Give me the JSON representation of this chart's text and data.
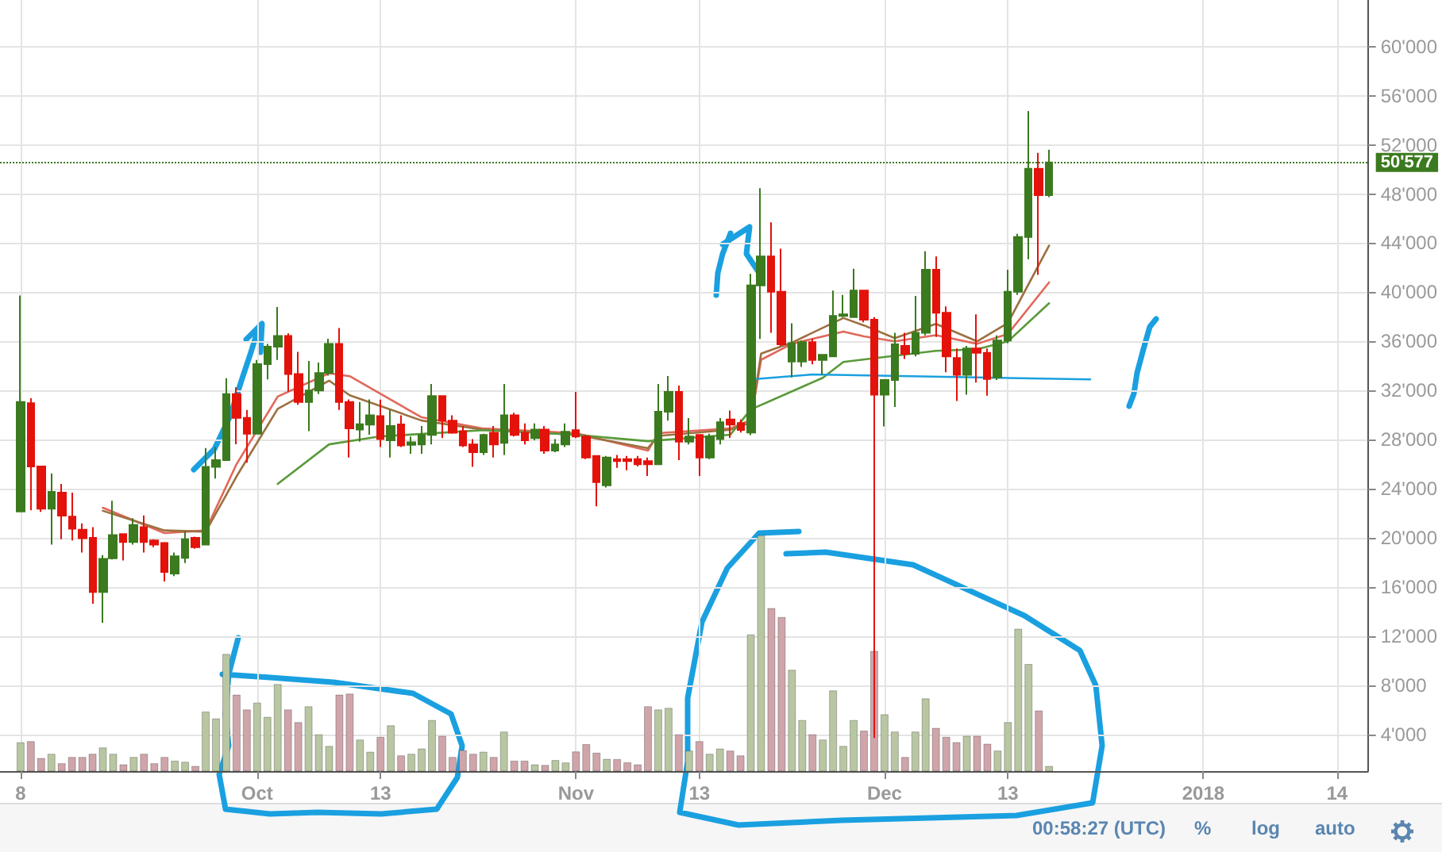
{
  "chart_data": {
    "type": "candlestick",
    "x": [
      "2017-09-08",
      "2017-09-09",
      "2017-09-10",
      "2017-09-11",
      "2017-09-12",
      "2017-09-13",
      "2017-09-14",
      "2017-09-15",
      "2017-09-16",
      "2017-09-17",
      "2017-09-18",
      "2017-09-19",
      "2017-09-20",
      "2017-09-21",
      "2017-09-22",
      "2017-09-23",
      "2017-09-24",
      "2017-09-25",
      "2017-09-26",
      "2017-09-27",
      "2017-09-28",
      "2017-09-29",
      "2017-09-30",
      "2017-10-01",
      "2017-10-02",
      "2017-10-03",
      "2017-10-04",
      "2017-10-05",
      "2017-10-06",
      "2017-10-07",
      "2017-10-08",
      "2017-10-09",
      "2017-10-10",
      "2017-10-11",
      "2017-10-12",
      "2017-10-13",
      "2017-10-14",
      "2017-10-15",
      "2017-10-16",
      "2017-10-17",
      "2017-10-18",
      "2017-10-19",
      "2017-10-20",
      "2017-10-21",
      "2017-10-22",
      "2017-10-23",
      "2017-10-24",
      "2017-10-25",
      "2017-10-26",
      "2017-10-27",
      "2017-10-28",
      "2017-10-29",
      "2017-10-30",
      "2017-10-31",
      "2017-11-01",
      "2017-11-02",
      "2017-11-03",
      "2017-11-04",
      "2017-11-05",
      "2017-11-06",
      "2017-11-07",
      "2017-11-08",
      "2017-11-09",
      "2017-11-10",
      "2017-11-11",
      "2017-11-12",
      "2017-11-13",
      "2017-11-14",
      "2017-11-15",
      "2017-11-16",
      "2017-11-17",
      "2017-11-18",
      "2017-11-19",
      "2017-11-20",
      "2017-11-21",
      "2017-11-22",
      "2017-11-23",
      "2017-11-24",
      "2017-11-25",
      "2017-11-26",
      "2017-11-27",
      "2017-11-28",
      "2017-11-29",
      "2017-11-30",
      "2017-12-01",
      "2017-12-02",
      "2017-12-03",
      "2017-12-04",
      "2017-12-05",
      "2017-12-06",
      "2017-12-07",
      "2017-12-08",
      "2017-12-09",
      "2017-12-10",
      "2017-12-11",
      "2017-12-12",
      "2017-12-13",
      "2017-12-14",
      "2017-12-15",
      "2017-12-16",
      "2017-12-17"
    ],
    "ohlc": [
      [
        22150,
        39740,
        22150,
        31060
      ],
      [
        30970,
        31360,
        22240,
        25810
      ],
      [
        25810,
        25810,
        22110,
        22370
      ],
      [
        22370,
        25250,
        19450,
        23750
      ],
      [
        23670,
        24390,
        19880,
        21810
      ],
      [
        21730,
        23670,
        19790,
        20740
      ],
      [
        20650,
        21170,
        18800,
        19960
      ],
      [
        20000,
        20870,
        14630,
        15580
      ],
      [
        15580,
        18590,
        13080,
        18280
      ],
      [
        18330,
        23020,
        18240,
        20220
      ],
      [
        20310,
        20310,
        18150,
        19660
      ],
      [
        19660,
        21600,
        19450,
        21040
      ],
      [
        20870,
        21820,
        18800,
        19660
      ],
      [
        19790,
        19880,
        19230,
        19450
      ],
      [
        19570,
        19660,
        16440,
        17210
      ],
      [
        17080,
        18800,
        16870,
        18500
      ],
      [
        18370,
        20520,
        17940,
        19880
      ],
      [
        20000,
        20090,
        19100,
        19230
      ],
      [
        19450,
        27320,
        19450,
        25770
      ],
      [
        25770,
        27400,
        24820,
        26330
      ],
      [
        26330,
        32990,
        26330,
        31700
      ],
      [
        31700,
        32260,
        27620,
        29770
      ],
      [
        29770,
        30410,
        26110,
        28470
      ],
      [
        28470,
        34490,
        28470,
        34150
      ],
      [
        34150,
        35790,
        32900,
        35570
      ],
      [
        35570,
        38800,
        34490,
        36430
      ],
      [
        36430,
        36650,
        31920,
        33340
      ],
      [
        33340,
        35140,
        30840,
        31060
      ],
      [
        31060,
        34410,
        28690,
        32000
      ],
      [
        32000,
        34280,
        31700,
        33420
      ],
      [
        33420,
        36220,
        33200,
        35790
      ],
      [
        35790,
        37080,
        30410,
        31060
      ],
      [
        31060,
        31270,
        26540,
        28910
      ],
      [
        28820,
        31060,
        27830,
        29250
      ],
      [
        29210,
        31270,
        28390,
        29970
      ],
      [
        29920,
        31250,
        27400,
        28040
      ],
      [
        27950,
        30390,
        26540,
        29110
      ],
      [
        29240,
        29970,
        27400,
        27530
      ],
      [
        27570,
        28250,
        26840,
        27780
      ],
      [
        27610,
        29110,
        26840,
        28380
      ],
      [
        28380,
        32530,
        27610,
        31550
      ],
      [
        31550,
        31550,
        28120,
        29540
      ],
      [
        29540,
        29970,
        28470,
        28550
      ],
      [
        28680,
        29110,
        27400,
        27530
      ],
      [
        27610,
        28040,
        25770,
        26970
      ],
      [
        26970,
        28470,
        26750,
        28380
      ],
      [
        28550,
        29110,
        26540,
        27610
      ],
      [
        27740,
        32530,
        26750,
        29970
      ],
      [
        29970,
        30180,
        28250,
        28380
      ],
      [
        28550,
        29320,
        27610,
        27950
      ],
      [
        28120,
        29320,
        27950,
        28810
      ],
      [
        28810,
        29110,
        26840,
        27100
      ],
      [
        27100,
        28040,
        26970,
        27610
      ],
      [
        27610,
        29320,
        27400,
        28640
      ],
      [
        28770,
        31890,
        28120,
        28250
      ],
      [
        28250,
        28380,
        26410,
        26540
      ],
      [
        26670,
        26670,
        22560,
        24530
      ],
      [
        24270,
        26670,
        24100,
        26540
      ],
      [
        26410,
        26750,
        25690,
        26240
      ],
      [
        26410,
        26670,
        25510,
        26240
      ],
      [
        26410,
        26670,
        25810,
        25980
      ],
      [
        26240,
        26540,
        25040,
        25980
      ],
      [
        25980,
        32530,
        25980,
        30260
      ],
      [
        30260,
        33180,
        29540,
        31890
      ],
      [
        31890,
        32400,
        26330,
        27830
      ],
      [
        27830,
        29750,
        27610,
        28250
      ],
      [
        28380,
        28380,
        25040,
        26540
      ],
      [
        26540,
        28470,
        26410,
        28250
      ],
      [
        28040,
        29750,
        27610,
        29410
      ],
      [
        29640,
        30370,
        28140,
        29210
      ],
      [
        29340,
        29640,
        28570,
        28780
      ],
      [
        28570,
        41490,
        28360,
        40550
      ],
      [
        40550,
        48470,
        36190,
        42910
      ],
      [
        42910,
        45690,
        36700,
        40040
      ],
      [
        40040,
        43550,
        35630,
        35760
      ],
      [
        34350,
        37470,
        33060,
        35840
      ],
      [
        34350,
        36060,
        33920,
        35930
      ],
      [
        35930,
        36190,
        34130,
        34480
      ],
      [
        34480,
        34900,
        33280,
        34900
      ],
      [
        34770,
        40130,
        34770,
        38070
      ],
      [
        38070,
        39780,
        37980,
        38200
      ],
      [
        37980,
        41920,
        37980,
        40130
      ],
      [
        40130,
        40130,
        37560,
        37770
      ],
      [
        37770,
        37980,
        3700,
        31650
      ],
      [
        31650,
        32850,
        29080,
        32850
      ],
      [
        32850,
        36700,
        30650,
        35760
      ],
      [
        35630,
        36700,
        34560,
        34990
      ],
      [
        34990,
        39700,
        34770,
        36700
      ],
      [
        36700,
        43330,
        36490,
        41840
      ],
      [
        41840,
        42910,
        36360,
        38330
      ],
      [
        38330,
        38840,
        33490,
        34770
      ],
      [
        34650,
        35420,
        31140,
        33280
      ],
      [
        33280,
        35630,
        31650,
        35420
      ],
      [
        35420,
        38200,
        32640,
        35070
      ],
      [
        35070,
        35420,
        31570,
        32930
      ],
      [
        33060,
        36490,
        32850,
        36060
      ],
      [
        36060,
        41840,
        35840,
        40040
      ],
      [
        40040,
        44750,
        39780,
        44490
      ],
      [
        44490,
        54760,
        42690,
        50050
      ],
      [
        50050,
        51340,
        41410,
        47910
      ],
      [
        47910,
        51600,
        47740,
        50577
      ]
    ],
    "colors": [
      "#3b7a1e",
      "#e3120b",
      "#e3120b",
      "#3b7a1e",
      "#e3120b",
      "#e3120b",
      "#e3120b",
      "#e3120b",
      "#3b7a1e",
      "#3b7a1e",
      "#e3120b",
      "#3b7a1e",
      "#e3120b",
      "#e3120b",
      "#e3120b",
      "#3b7a1e",
      "#3b7a1e",
      "#e3120b",
      "#3b7a1e",
      "#3b7a1e",
      "#3b7a1e",
      "#e3120b",
      "#e3120b",
      "#3b7a1e",
      "#3b7a1e",
      "#3b7a1e",
      "#e3120b",
      "#e3120b",
      "#3b7a1e",
      "#3b7a1e",
      "#3b7a1e",
      "#e3120b",
      "#e3120b",
      "#3b7a1e",
      "#3b7a1e",
      "#e3120b",
      "#3b7a1e",
      "#e3120b",
      "#3b7a1e",
      "#3b7a1e",
      "#3b7a1e",
      "#e3120b",
      "#e3120b",
      "#e3120b",
      "#e3120b",
      "#3b7a1e",
      "#e3120b",
      "#3b7a1e",
      "#e3120b",
      "#e3120b",
      "#3b7a1e",
      "#e3120b",
      "#3b7a1e",
      "#3b7a1e",
      "#e3120b",
      "#e3120b",
      "#e3120b",
      "#3b7a1e",
      "#e3120b",
      "#e3120b",
      "#e3120b",
      "#e3120b",
      "#3b7a1e",
      "#3b7a1e",
      "#e3120b",
      "#3b7a1e",
      "#e3120b",
      "#3b7a1e",
      "#3b7a1e",
      "#e3120b",
      "#e3120b",
      "#3b7a1e",
      "#3b7a1e",
      "#e3120b",
      "#e3120b",
      "#3b7a1e",
      "#3b7a1e",
      "#e3120b",
      "#3b7a1e",
      "#3b7a1e",
      "#3b7a1e",
      "#3b7a1e",
      "#e3120b",
      "#e3120b",
      "#3b7a1e",
      "#3b7a1e",
      "#e3120b",
      "#3b7a1e",
      "#3b7a1e",
      "#e3120b",
      "#e3120b",
      "#e3120b",
      "#3b7a1e",
      "#e3120b",
      "#e3120b",
      "#3b7a1e",
      "#3b7a1e",
      "#3b7a1e",
      "#3b7a1e",
      "#e3120b",
      "#3b7a1e"
    ],
    "series": [
      {
        "type": "bar",
        "values": [
          3350,
          3440,
          2070,
          2410,
          1640,
          2150,
          2150,
          2410,
          2930,
          2410,
          1550,
          2150,
          2410,
          1640,
          2150,
          1850,
          1760,
          1420,
          5850,
          5290,
          10540,
          7230,
          6020,
          6580,
          5420,
          8090,
          6020,
          4990,
          6280,
          4000,
          3050,
          7230,
          7310,
          3570,
          2580,
          3790,
          4730,
          2280,
          2410,
          2840,
          5160,
          3870,
          2150,
          2710,
          2410,
          2580,
          2150,
          4220,
          1850,
          1850,
          1550,
          1500,
          1900,
          1700,
          2600,
          3200,
          2500,
          2000,
          1980,
          1720,
          1550,
          6280,
          6020,
          6150,
          4000,
          2670,
          3440,
          2410,
          2840,
          2670,
          2280,
          12130,
          20210,
          14280,
          13550,
          9250,
          5160,
          4000,
          3570,
          7570,
          3050,
          5160,
          4300,
          10790,
          5630,
          4220,
          2150,
          4220,
          6920,
          4520,
          3790,
          3360,
          3870,
          3870,
          3230,
          2670,
          4990,
          12600,
          9720,
          5940,
          1420
        ],
        "colors": [
          "#b8c6a2",
          "#cfa5aa",
          "#cfa5aa",
          "#b8c6a2",
          "#cfa5aa",
          "#cfa5aa",
          "#cfa5aa",
          "#cfa5aa",
          "#b8c6a2",
          "#b8c6a2",
          "#cfa5aa",
          "#b8c6a2",
          "#cfa5aa",
          "#cfa5aa",
          "#cfa5aa",
          "#b8c6a2",
          "#b8c6a2",
          "#cfa5aa",
          "#b8c6a2",
          "#b8c6a2",
          "#b8c6a2",
          "#cfa5aa",
          "#cfa5aa",
          "#b8c6a2",
          "#b8c6a2",
          "#b8c6a2",
          "#cfa5aa",
          "#cfa5aa",
          "#b8c6a2",
          "#b8c6a2",
          "#b8c6a2",
          "#cfa5aa",
          "#cfa5aa",
          "#b8c6a2",
          "#b8c6a2",
          "#cfa5aa",
          "#b8c6a2",
          "#cfa5aa",
          "#b8c6a2",
          "#b8c6a2",
          "#b8c6a2",
          "#cfa5aa",
          "#cfa5aa",
          "#cfa5aa",
          "#cfa5aa",
          "#b8c6a2",
          "#cfa5aa",
          "#b8c6a2",
          "#cfa5aa",
          "#cfa5aa",
          "#b8c6a2",
          "#cfa5aa",
          "#b8c6a2",
          "#b8c6a2",
          "#cfa5aa",
          "#cfa5aa",
          "#cfa5aa",
          "#b8c6a2",
          "#cfa5aa",
          "#cfa5aa",
          "#cfa5aa",
          "#cfa5aa",
          "#b8c6a2",
          "#b8c6a2",
          "#cfa5aa",
          "#b8c6a2",
          "#cfa5aa",
          "#b8c6a2",
          "#b8c6a2",
          "#cfa5aa",
          "#cfa5aa",
          "#b8c6a2",
          "#b8c6a2",
          "#cfa5aa",
          "#cfa5aa",
          "#b8c6a2",
          "#b8c6a2",
          "#cfa5aa",
          "#b8c6a2",
          "#b8c6a2",
          "#b8c6a2",
          "#b8c6a2",
          "#cfa5aa",
          "#cfa5aa",
          "#b8c6a2",
          "#b8c6a2",
          "#cfa5aa",
          "#b8c6a2",
          "#b8c6a2",
          "#cfa5aa",
          "#cfa5aa",
          "#cfa5aa",
          "#b8c6a2",
          "#cfa5aa",
          "#cfa5aa",
          "#b8c6a2",
          "#b8c6a2",
          "#b8c6a2",
          "#b8c6a2",
          "#cfa5aa",
          "#b8c6a2"
        ]
      },
      {
        "type": "line",
        "color": "#e0685a",
        "x": [
          "2017-09-16",
          "2017-09-22",
          "2017-09-26",
          "2017-09-29",
          "2017-10-03",
          "2017-10-08",
          "2017-10-10",
          "2017-10-17",
          "2017-10-23",
          "2017-11-01",
          "2017-11-08",
          "2017-11-09",
          "2017-11-16",
          "2017-11-18",
          "2017-11-19",
          "2017-11-22",
          "2017-11-27",
          "2017-11-29",
          "2017-12-02",
          "2017-12-06",
          "2017-12-10",
          "2017-12-13",
          "2017-12-17"
        ],
        "values": [
          22450,
          20380,
          20600,
          26000,
          31500,
          33400,
          33160,
          29810,
          28900,
          28520,
          27100,
          28520,
          28900,
          29600,
          34500,
          35800,
          36800,
          36400,
          36000,
          36500,
          35800,
          36600,
          40800
        ]
      },
      {
        "type": "line",
        "color": "#9c7040",
        "x": [
          "2017-09-16",
          "2017-09-22",
          "2017-09-26",
          "2017-09-29",
          "2017-10-03",
          "2017-10-08",
          "2017-10-10",
          "2017-10-17",
          "2017-10-23",
          "2017-11-01",
          "2017-11-08",
          "2017-11-09",
          "2017-11-16",
          "2017-11-18",
          "2017-11-19",
          "2017-11-22",
          "2017-11-27",
          "2017-11-29",
          "2017-12-02",
          "2017-12-06",
          "2017-12-10",
          "2017-12-13",
          "2017-12-17"
        ],
        "values": [
          22200,
          20600,
          20500,
          25000,
          30500,
          32800,
          31610,
          29550,
          28800,
          28400,
          27300,
          28300,
          28800,
          29400,
          35000,
          35900,
          37900,
          37300,
          36260,
          37420,
          36000,
          37500,
          43800
        ]
      },
      {
        "type": "line",
        "color": "#5a9a3a",
        "x": [
          "2017-10-03",
          "2017-10-08",
          "2017-10-13",
          "2017-10-23",
          "2017-11-01",
          "2017-11-08",
          "2017-11-16",
          "2017-11-18",
          "2017-11-25",
          "2017-11-27",
          "2017-12-06",
          "2017-12-10",
          "2017-12-13",
          "2017-12-17"
        ],
        "values": [
          24390,
          27610,
          28260,
          28770,
          28390,
          27870,
          28390,
          30450,
          33030,
          34320,
          35230,
          35350,
          36000,
          39100
        ]
      },
      {
        "type": "line",
        "color": "#1aa0e0",
        "x": [
          "2017-11-18",
          "2017-11-24",
          "2017-12-21"
        ],
        "values": [
          32900,
          33300,
          32900
        ]
      }
    ],
    "xlim": [
      "2017-09-06",
      "2018-01-17"
    ],
    "xticks": [
      {
        "value": "2017-09-08",
        "label": "8"
      },
      {
        "value": "2017-10-01",
        "label": "Oct"
      },
      {
        "value": "2017-10-13",
        "label": "13"
      },
      {
        "value": "2017-11-01",
        "label": "Nov"
      },
      {
        "value": "2017-11-13",
        "label": "13"
      },
      {
        "value": "2017-12-01",
        "label": "Dec"
      },
      {
        "value": "2017-12-13",
        "label": "13"
      },
      {
        "value": "2018-01-01",
        "label": "2018"
      },
      {
        "value": "2018-01-14",
        "label": "14"
      }
    ],
    "ylim": [
      1000,
      63800
    ],
    "yticks": [
      {
        "value": 4000,
        "label": "4'000"
      },
      {
        "value": 8000,
        "label": "8'000"
      },
      {
        "value": 12000,
        "label": "12'000"
      },
      {
        "value": 16000,
        "label": "16'000"
      },
      {
        "value": 20000,
        "label": "20'000"
      },
      {
        "value": 24000,
        "label": "24'000"
      },
      {
        "value": 28000,
        "label": "28'000"
      },
      {
        "value": 32000,
        "label": "32'000"
      },
      {
        "value": 36000,
        "label": "36'000"
      },
      {
        "value": 40000,
        "label": "40'000"
      },
      {
        "value": 44000,
        "label": "44'000"
      },
      {
        "value": 48000,
        "label": "48'000"
      },
      {
        "value": 52000,
        "label": "52'000"
      },
      {
        "value": 56000,
        "label": "56'000"
      },
      {
        "value": 60000,
        "label": "60'000"
      }
    ],
    "ref_lines": [
      {
        "axis": "y",
        "value": 50577,
        "label": "50'577",
        "color": "#3b7a1e",
        "line_style": "dotted"
      }
    ],
    "grid": true,
    "marker": "none",
    "annotations": [
      "00:58:27 (UTC)",
      "%",
      "log",
      "auto"
    ]
  }
}
